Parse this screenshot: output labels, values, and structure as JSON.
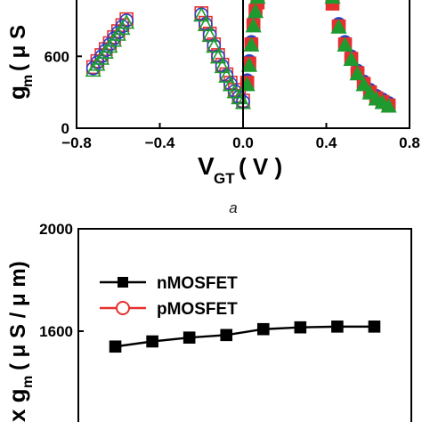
{
  "caption": "a",
  "chart_data": [
    {
      "type": "scatter",
      "xlabel": "V",
      "xlabel_sub": "GT",
      "xlabel_unit": "( V )",
      "ylabel": "g",
      "ylabel_sub": "m",
      "ylabel_unit": "( μ S",
      "xlim": [
        -0.8,
        0.8
      ],
      "ylim": [
        0,
        1100
      ],
      "xticks": [
        -0.8,
        -0.4,
        0.0,
        0.4,
        0.8
      ],
      "xtick_labels": [
        "−0.8",
        "−0.4",
        "0.0",
        "0.4",
        "0.8"
      ],
      "yticks": [
        0,
        600
      ],
      "ytick_labels": [
        "0",
        "600"
      ],
      "series": [
        {
          "marker": "square",
          "filled": false,
          "color": "#e53030",
          "x": [
            -0.72,
            -0.7,
            -0.68,
            -0.66,
            -0.64,
            -0.62,
            -0.6,
            -0.58,
            -0.56,
            -0.2,
            -0.18,
            -0.16,
            -0.14,
            -0.12,
            -0.1,
            -0.08,
            -0.06,
            -0.04,
            -0.02,
            0.0
          ],
          "y": [
            510,
            560,
            610,
            660,
            710,
            760,
            810,
            860,
            910,
            960,
            880,
            790,
            700,
            610,
            530,
            450,
            380,
            320,
            270,
            230
          ]
        },
        {
          "marker": "circle",
          "filled": false,
          "color": "#2b3fc4",
          "x": [
            -0.72,
            -0.7,
            -0.68,
            -0.66,
            -0.64,
            -0.62,
            -0.6,
            -0.58,
            -0.56,
            -0.2,
            -0.18,
            -0.16,
            -0.14,
            -0.12,
            -0.1,
            -0.08,
            -0.06,
            -0.04,
            -0.02,
            0.0
          ],
          "y": [
            500,
            550,
            600,
            650,
            700,
            750,
            800,
            850,
            900,
            950,
            870,
            780,
            690,
            600,
            520,
            440,
            370,
            310,
            260,
            220
          ]
        },
        {
          "marker": "triangle",
          "filled": false,
          "color": "#1e9a2e",
          "x": [
            -0.72,
            -0.7,
            -0.68,
            -0.66,
            -0.64,
            -0.62,
            -0.6,
            -0.58,
            -0.56,
            -0.2,
            -0.18,
            -0.16,
            -0.14,
            -0.12,
            -0.1,
            -0.08,
            -0.06,
            -0.04,
            -0.02,
            0.0
          ],
          "y": [
            480,
            530,
            580,
            630,
            680,
            730,
            780,
            830,
            880,
            940,
            860,
            770,
            680,
            590,
            510,
            430,
            360,
            300,
            250,
            210
          ]
        },
        {
          "marker": "circle",
          "filled": true,
          "color": "#2b3fc4",
          "x": [
            0.02,
            0.03,
            0.04,
            0.05,
            0.06,
            0.07,
            0.43,
            0.46,
            0.49,
            0.52,
            0.55,
            0.58,
            0.61,
            0.64,
            0.67,
            0.7
          ],
          "y": [
            400,
            560,
            720,
            880,
            1000,
            1070,
            1060,
            870,
            720,
            600,
            480,
            390,
            320,
            270,
            240,
            210
          ]
        },
        {
          "marker": "square",
          "filled": true,
          "color": "#e53030",
          "x": [
            0.02,
            0.03,
            0.04,
            0.05,
            0.06,
            0.07,
            0.43,
            0.46,
            0.49,
            0.52,
            0.55,
            0.58,
            0.61,
            0.64,
            0.67,
            0.7
          ],
          "y": [
            380,
            540,
            700,
            860,
            980,
            1050,
            1040,
            850,
            700,
            580,
            460,
            370,
            300,
            250,
            220,
            190
          ]
        },
        {
          "marker": "triangle",
          "filled": true,
          "color": "#1e9a2e",
          "x": [
            0.02,
            0.03,
            0.04,
            0.05,
            0.06,
            0.07,
            0.43,
            0.46,
            0.49,
            0.52,
            0.55,
            0.58,
            0.61,
            0.64,
            0.67,
            0.7
          ],
          "y": [
            360,
            520,
            690,
            850,
            970,
            1090,
            1090,
            840,
            690,
            570,
            450,
            360,
            290,
            240,
            210,
            180
          ]
        }
      ]
    },
    {
      "type": "line",
      "ylabel": "x g",
      "ylabel_sub": "m",
      "ylabel_unit": "( μ S / μ m)",
      "ylim": [
        1200,
        2000
      ],
      "yticks": [
        1600,
        2000
      ],
      "ytick_labels": [
        "1600",
        "2000"
      ],
      "legend_position": "top-left",
      "series": [
        {
          "name": "nMOSFET",
          "color": "#000000",
          "marker": "square",
          "filled": true,
          "x": [
            1,
            2,
            3,
            4,
            5,
            6,
            7,
            8
          ],
          "y": [
            1540,
            1560,
            1575,
            1585,
            1608,
            1615,
            1618,
            1618
          ]
        },
        {
          "name": "pMOSFET",
          "color": "#e53030",
          "marker": "circle",
          "filled": false,
          "x": [],
          "y": []
        }
      ]
    }
  ]
}
